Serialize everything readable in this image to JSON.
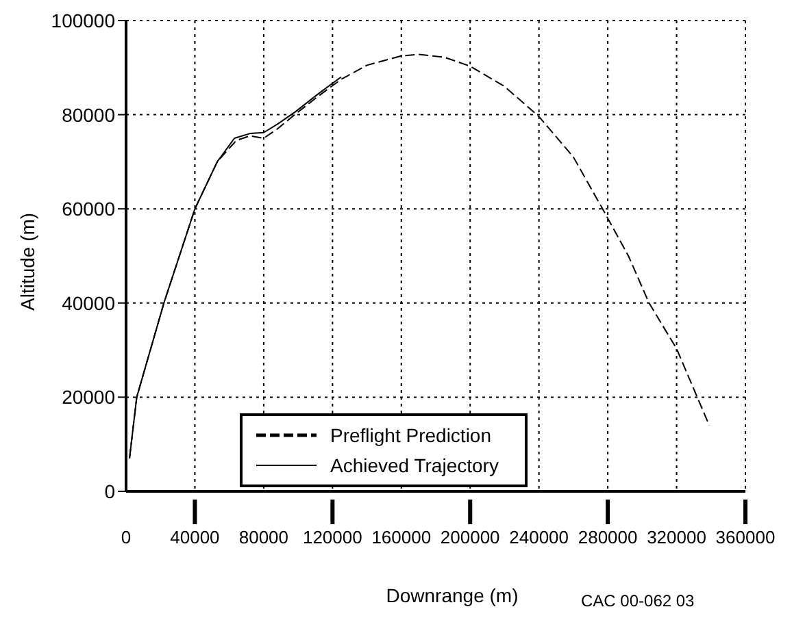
{
  "chart_data": {
    "type": "line",
    "xlabel": "Downrange (m)",
    "ylabel": "Altitude (m)",
    "xlim": [
      0,
      360000
    ],
    "xticks": [
      0,
      40000,
      80000,
      120000,
      160000,
      200000,
      240000,
      280000,
      320000,
      360000
    ],
    "ylim": [
      0,
      100000
    ],
    "yticks": [
      0,
      20000,
      40000,
      60000,
      80000,
      100000
    ],
    "grid": true,
    "legend": "bottom",
    "marker": "none",
    "annotations": [
      "CAC 00-062 03"
    ],
    "series": [
      {
        "name": "Preflight Prediction",
        "color": "#000000",
        "line_style": "dashed",
        "x": [
          2000,
          6200,
          22000,
          40000,
          53000,
          64000,
          72000,
          80000,
          88000,
          98000,
          112000,
          125000,
          140000,
          160000,
          170000,
          185000,
          200000,
          220000,
          240000,
          260000,
          277000,
          292000,
          304000,
          320000,
          332000,
          339000
        ],
        "values": [
          7000,
          20000,
          40000,
          60000,
          70000,
          74500,
          75500,
          75000,
          77000,
          80000,
          84000,
          87500,
          90500,
          92500,
          92800,
          92200,
          90300,
          86000,
          79600,
          71000,
          60000,
          50000,
          40000,
          30300,
          20000,
          14000
        ]
      },
      {
        "name": "Achieved Trajectory",
        "color": "#000000",
        "line_style": "solid",
        "x": [
          2000,
          6200,
          22000,
          40000,
          53000,
          63000,
          72000,
          80000,
          88000,
          98000,
          112000,
          125000
        ],
        "values": [
          7000,
          20000,
          40000,
          60000,
          70000,
          75000,
          76000,
          76200,
          78000,
          80500,
          84500,
          88000
        ]
      }
    ]
  }
}
